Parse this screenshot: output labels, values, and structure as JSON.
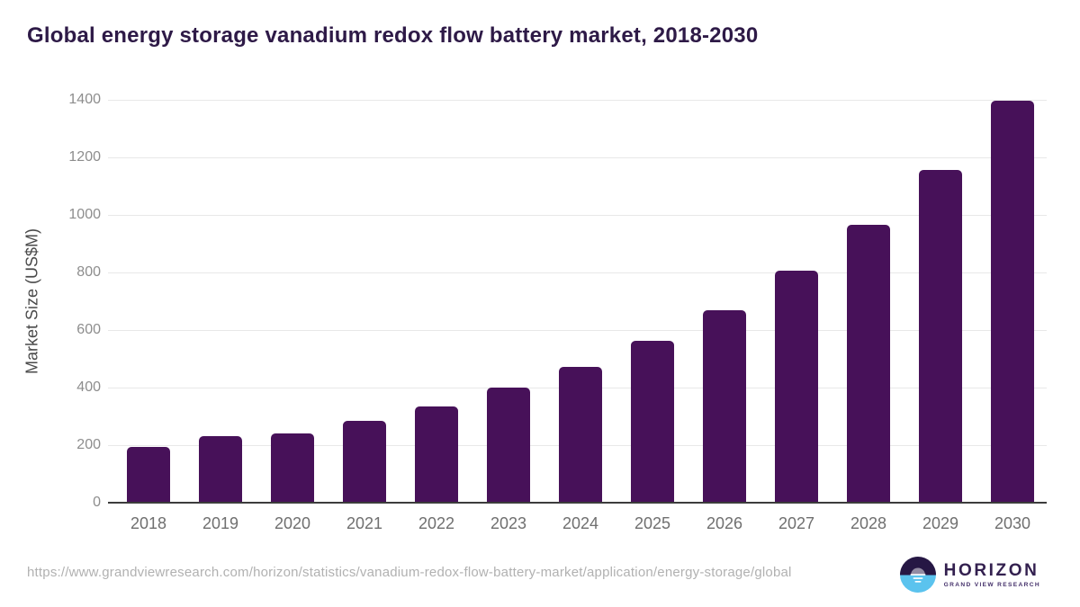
{
  "chart": {
    "title": "Global energy storage vanadium redox flow battery market, 2018-2030",
    "ylabel": "Market Size (US$M)"
  },
  "chart_data": {
    "type": "bar",
    "title": "Global energy storage vanadium redox flow battery market, 2018-2030",
    "xlabel": "",
    "ylabel": "Market Size (US$M)",
    "categories": [
      "2018",
      "2019",
      "2020",
      "2021",
      "2022",
      "2023",
      "2024",
      "2025",
      "2026",
      "2027",
      "2028",
      "2029",
      "2030"
    ],
    "values": [
      195,
      230,
      240,
      284,
      336,
      399,
      472,
      562,
      670,
      806,
      965,
      1157,
      1396
    ],
    "ylim": [
      0,
      1400
    ],
    "yticks": [
      0,
      200,
      400,
      600,
      800,
      1000,
      1200,
      1400
    ],
    "grid": "horizontal",
    "legend": "none",
    "bar_color": "#471159"
  },
  "footer": {
    "url": "https://www.grandviewresearch.com/horizon/statistics/vanadium-redox-flow-battery-market/application/energy-storage/global",
    "logo": {
      "name": "HORIZON",
      "subtitle": "GRAND VIEW RESEARCH"
    }
  },
  "colors": {
    "bar": "#471159",
    "title_text": "#2e1a47",
    "gridline": "#e8e8e8",
    "axis_line": "#3c3c3c",
    "y_tick_text": "#8d8d8d",
    "x_tick_text": "#6f6f6f",
    "url_text": "#b1b1b1",
    "logo_purple": "#33204f",
    "logo_dark_half": "#261744",
    "logo_blue_half": "#5bc3ee"
  }
}
